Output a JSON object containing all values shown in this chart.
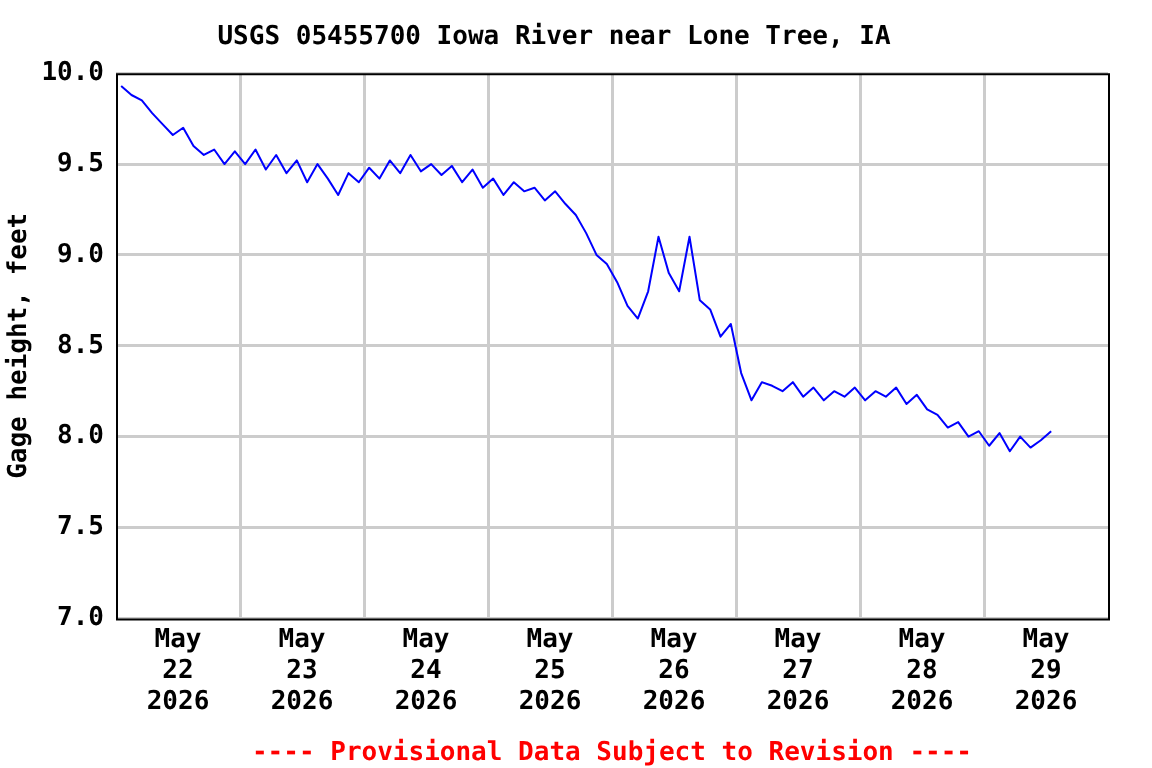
{
  "chart_data": {
    "type": "line",
    "title": "USGS 05455700 Iowa River near Lone Tree, IA",
    "ylabel": "Gage height, feet",
    "annotations": [
      "---- Provisional Data Subject to Revision ----"
    ],
    "x": [
      "2026-05-22T01:00",
      "2026-05-22T03:00",
      "2026-05-22T05:00",
      "2026-05-22T07:00",
      "2026-05-22T09:00",
      "2026-05-22T11:00",
      "2026-05-22T13:00",
      "2026-05-22T15:00",
      "2026-05-22T17:00",
      "2026-05-22T19:00",
      "2026-05-22T21:00",
      "2026-05-22T23:00",
      "2026-05-23T01:00",
      "2026-05-23T03:00",
      "2026-05-23T05:00",
      "2026-05-23T07:00",
      "2026-05-23T09:00",
      "2026-05-23T11:00",
      "2026-05-23T13:00",
      "2026-05-23T15:00",
      "2026-05-23T17:00",
      "2026-05-23T19:00",
      "2026-05-23T21:00",
      "2026-05-23T23:00",
      "2026-05-24T01:00",
      "2026-05-24T03:00",
      "2026-05-24T05:00",
      "2026-05-24T07:00",
      "2026-05-24T09:00",
      "2026-05-24T11:00",
      "2026-05-24T13:00",
      "2026-05-24T15:00",
      "2026-05-24T17:00",
      "2026-05-24T19:00",
      "2026-05-24T21:00",
      "2026-05-24T23:00",
      "2026-05-25T01:00",
      "2026-05-25T03:00",
      "2026-05-25T05:00",
      "2026-05-25T07:00",
      "2026-05-25T09:00",
      "2026-05-25T11:00",
      "2026-05-25T13:00",
      "2026-05-25T15:00",
      "2026-05-25T17:00",
      "2026-05-25T19:00",
      "2026-05-25T21:00",
      "2026-05-25T23:00",
      "2026-05-26T01:00",
      "2026-05-26T03:00",
      "2026-05-26T05:00",
      "2026-05-26T07:00",
      "2026-05-26T09:00",
      "2026-05-26T11:00",
      "2026-05-26T13:00",
      "2026-05-26T15:00",
      "2026-05-26T17:00",
      "2026-05-26T19:00",
      "2026-05-26T21:00",
      "2026-05-26T23:00",
      "2026-05-27T01:00",
      "2026-05-27T03:00",
      "2026-05-27T05:00",
      "2026-05-27T07:00",
      "2026-05-27T09:00",
      "2026-05-27T11:00",
      "2026-05-27T13:00",
      "2026-05-27T15:00",
      "2026-05-27T17:00",
      "2026-05-27T19:00",
      "2026-05-27T21:00",
      "2026-05-27T23:00",
      "2026-05-28T01:00",
      "2026-05-28T03:00",
      "2026-05-28T05:00",
      "2026-05-28T07:00",
      "2026-05-28T09:00",
      "2026-05-28T11:00",
      "2026-05-28T13:00",
      "2026-05-28T15:00",
      "2026-05-28T17:00",
      "2026-05-28T19:00",
      "2026-05-28T21:00",
      "2026-05-28T23:00",
      "2026-05-29T01:00",
      "2026-05-29T03:00",
      "2026-05-29T05:00",
      "2026-05-29T07:00",
      "2026-05-29T09:00",
      "2026-05-29T11:00",
      "2026-05-29T13:00"
    ],
    "series": [
      {
        "color": "#0000ff",
        "values": [
          9.93,
          9.88,
          9.85,
          9.78,
          9.72,
          9.66,
          9.7,
          9.6,
          9.55,
          9.58,
          9.5,
          9.57,
          9.5,
          9.58,
          9.47,
          9.55,
          9.45,
          9.52,
          9.4,
          9.5,
          9.42,
          9.33,
          9.45,
          9.4,
          9.48,
          9.42,
          9.52,
          9.45,
          9.55,
          9.46,
          9.5,
          9.44,
          9.49,
          9.4,
          9.47,
          9.37,
          9.42,
          9.33,
          9.4,
          9.35,
          9.37,
          9.3,
          9.35,
          9.28,
          9.22,
          9.12,
          9.0,
          8.95,
          8.85,
          8.72,
          8.65,
          8.8,
          9.1,
          8.9,
          8.8,
          9.1,
          8.75,
          8.7,
          8.55,
          8.62,
          8.35,
          8.2,
          8.3,
          8.28,
          8.25,
          8.3,
          8.22,
          8.27,
          8.2,
          8.25,
          8.22,
          8.27,
          8.2,
          8.25,
          8.22,
          8.27,
          8.18,
          8.23,
          8.15,
          8.12,
          8.05,
          8.08,
          8.0,
          8.03,
          7.95,
          8.02,
          7.92,
          8.0,
          7.94,
          7.98,
          8.03
        ]
      }
    ],
    "xlim": [
      "2026-05-22T00:00",
      "2026-05-30T00:00"
    ],
    "xticks": [
      {
        "value": "2026-05-22T12:00",
        "label": "May 22 2026"
      },
      {
        "value": "2026-05-23T00:00",
        "label": null
      },
      {
        "value": "2026-05-23T12:00",
        "label": "May 23 2026"
      },
      {
        "value": "2026-05-24T00:00",
        "label": null
      },
      {
        "value": "2026-05-24T12:00",
        "label": "May 24 2026"
      },
      {
        "value": "2026-05-25T00:00",
        "label": null
      },
      {
        "value": "2026-05-25T12:00",
        "label": "May 25 2026"
      },
      {
        "value": "2026-05-26T00:00",
        "label": null
      },
      {
        "value": "2026-05-26T12:00",
        "label": "May 26 2026"
      },
      {
        "value": "2026-05-27T00:00",
        "label": null
      },
      {
        "value": "2026-05-27T12:00",
        "label": "May 27 2026"
      },
      {
        "value": "2026-05-28T00:00",
        "label": null
      },
      {
        "value": "2026-05-28T12:00",
        "label": "May 28 2026"
      },
      {
        "value": "2026-05-29T00:00",
        "label": null
      },
      {
        "value": "2026-05-29T12:00",
        "label": "May 29 2026"
      }
    ],
    "ylim": [
      7.0,
      10.0
    ],
    "yticks": [
      {
        "value": 7.0,
        "label": "7.0"
      },
      {
        "value": 7.5,
        "label": "7.5"
      },
      {
        "value": 8.0,
        "label": "8.0"
      },
      {
        "value": 8.5,
        "label": "8.5"
      },
      {
        "value": 9.0,
        "label": "9.0"
      },
      {
        "value": 9.5,
        "label": "9.5"
      },
      {
        "value": 10.0,
        "label": "10.0"
      }
    ],
    "grid": true,
    "marker": "none",
    "line_style": "solid"
  }
}
